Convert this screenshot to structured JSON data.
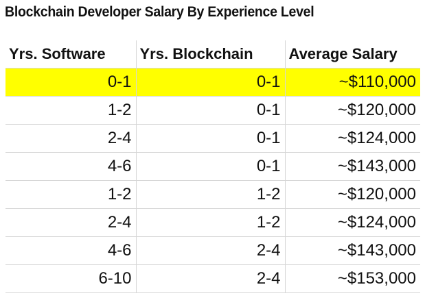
{
  "title": "Blockchain Developer Salary By Experience Level",
  "highlight_color": "#ffff00",
  "columns": [
    "Yrs. Software",
    "Yrs. Blockchain",
    "Average Salary"
  ],
  "rows": [
    [
      "0-1",
      "0-1",
      "~$110,000"
    ],
    [
      "1-2",
      "0-1",
      "~$120,000"
    ],
    [
      "2-4",
      "0-1",
      "~$124,000"
    ],
    [
      "4-6",
      "0-1",
      "~$143,000"
    ],
    [
      "1-2",
      "1-2",
      "~$120,000"
    ],
    [
      "2-4",
      "1-2",
      "~$124,000"
    ],
    [
      "4-6",
      "2-4",
      "~$143,000"
    ],
    [
      "6-10",
      "2-4",
      "~$153,000"
    ]
  ]
}
